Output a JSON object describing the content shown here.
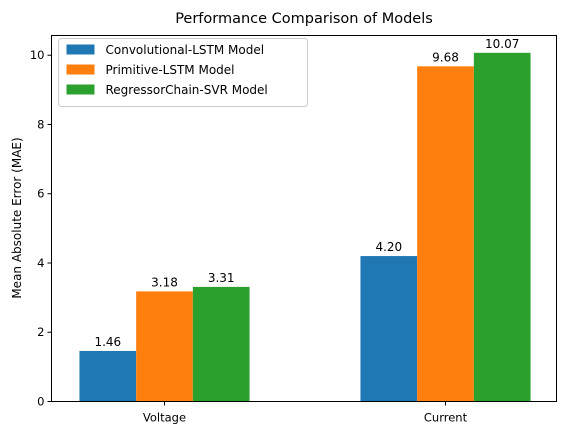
{
  "chart_data": {
    "type": "bar",
    "title": "Performance Comparison of Models",
    "xlabel": "",
    "ylabel": "Mean Absolute Error (MAE)",
    "categories": [
      "Voltage",
      "Current"
    ],
    "series": [
      {
        "name": "Convolutional-LSTM Model",
        "color": "#1f77b4",
        "values": [
          1.46,
          4.2
        ],
        "labels": [
          "1.46",
          "4.20"
        ]
      },
      {
        "name": "Primitive-LSTM Model",
        "color": "#ff7f0e",
        "values": [
          3.18,
          9.68
        ],
        "labels": [
          "3.18",
          "9.68"
        ]
      },
      {
        "name": "RegressorChain-SVR Model",
        "color": "#2ca02c",
        "values": [
          3.31,
          10.07
        ],
        "labels": [
          "3.31",
          "10.07"
        ]
      }
    ],
    "ylim": [
      0,
      10.57
    ],
    "yticks": [
      "0",
      "2",
      "4",
      "6",
      "8",
      "10"
    ],
    "grid": false,
    "legend": "top-left"
  }
}
